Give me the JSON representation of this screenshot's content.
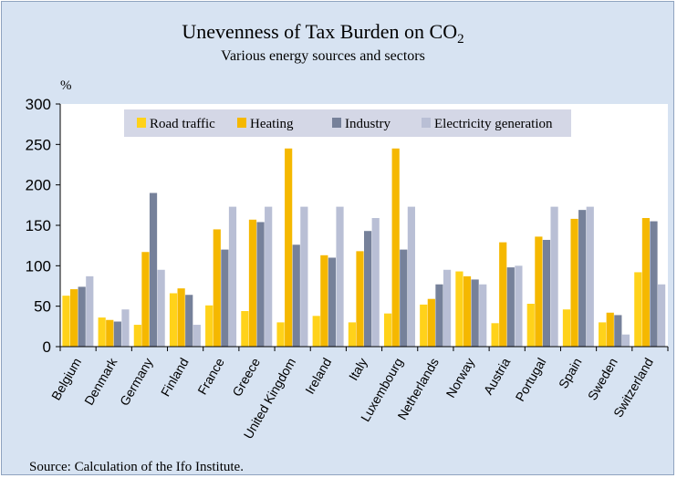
{
  "chart_data": {
    "type": "bar",
    "title": "Unevenness of Tax Burden on CO2",
    "title_parts": {
      "main": "Unevenness of Tax Burden on CO",
      "subscript": "2"
    },
    "subtitle": "Various energy sources and sectors",
    "ylabel": "%",
    "xlabel": "",
    "ylim": [
      0,
      300
    ],
    "yticks": [
      0,
      50,
      100,
      150,
      200,
      250,
      300
    ],
    "grid": false,
    "legend_position": "top",
    "source": "Source: Calculation of the Ifo Institute.",
    "categories": [
      "Belgium",
      "Denmark",
      "Germany",
      "Finland",
      "France",
      "Greece",
      "United Kingdom",
      "Ireland",
      "Italy",
      "Luxembourg",
      "Netherlands",
      "Norway",
      "Austria",
      "Portugal",
      "Spain",
      "Sweden",
      "Switzerland"
    ],
    "series": [
      {
        "name": "Road traffic",
        "color": "#ffd21a",
        "values": [
          63,
          36,
          27,
          66,
          51,
          44,
          30,
          38,
          30,
          41,
          52,
          93,
          29,
          53,
          46,
          30,
          92
        ]
      },
      {
        "name": "Heating",
        "color": "#f5b800",
        "values": [
          71,
          33,
          117,
          72,
          145,
          157,
          245,
          113,
          118,
          245,
          59,
          87,
          129,
          136,
          158,
          42,
          159
        ]
      },
      {
        "name": "Industry",
        "color": "#76819a",
        "values": [
          74,
          31,
          190,
          64,
          120,
          154,
          126,
          110,
          143,
          120,
          77,
          83,
          98,
          132,
          169,
          39,
          155
        ]
      },
      {
        "name": "Electricity generation",
        "color": "#b9bfd5",
        "values": [
          87,
          46,
          95,
          27,
          173,
          173,
          173,
          173,
          159,
          173,
          95,
          77,
          100,
          173,
          173,
          15,
          77
        ]
      }
    ]
  }
}
